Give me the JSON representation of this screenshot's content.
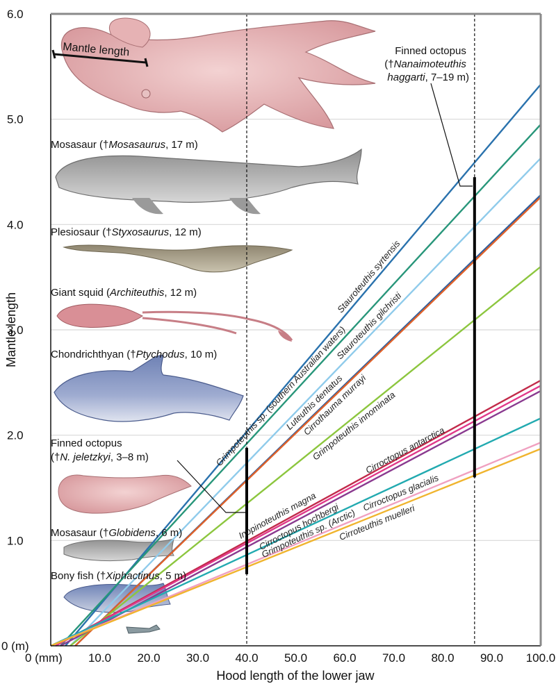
{
  "chart_data": {
    "type": "line",
    "xlabel": "Hood length of the lower jaw",
    "ylabel": "Mantle length",
    "xlim": [
      0,
      100
    ],
    "ylim": [
      0,
      6
    ],
    "x_ticks": [
      "0 (mm)",
      "10.0",
      "20.0",
      "30.0",
      "40.0",
      "50.0",
      "60.0",
      "70.0",
      "80.0",
      "90.0",
      "100.0"
    ],
    "y_ticks": [
      "0 (m)",
      "1.0",
      "2.0",
      "3.0",
      "4.0",
      "5.0",
      "6.0"
    ],
    "grid": "horizontal",
    "reference_lines": [
      {
        "x": 40,
        "style": "dashed"
      },
      {
        "x": 86.5,
        "style": "dashed"
      }
    ],
    "ranges": [
      {
        "x": 40,
        "y_min": 0.68,
        "y_max": 1.88,
        "label": "Finned octopus (†N. jeletzkyi, 3–8 m)"
      },
      {
        "x": 86.5,
        "y_min": 1.6,
        "y_max": 4.45,
        "label": "Finned octopus (†Nanaimoteuthis haggarti, 7–19 m)"
      }
    ],
    "series": [
      {
        "name": "Stauroteuthis syrtensis",
        "color": "#2a72ad",
        "x": [
          3,
          100
        ],
        "y": [
          0,
          5.33
        ]
      },
      {
        "name": "Grimpoteuthis sp. (southern Australian waters)",
        "color": "#28967a",
        "x": [
          2,
          100
        ],
        "y": [
          0,
          4.95
        ]
      },
      {
        "name": "Stauroteuthis gilchristi",
        "color": "#8fcbeb",
        "x": [
          4,
          100
        ],
        "y": [
          0,
          4.63
        ]
      },
      {
        "name": "Luteuthis dentatus",
        "color": "#2c5fa0",
        "x": [
          5,
          100
        ],
        "y": [
          0,
          4.28
        ]
      },
      {
        "name": "Cirrothauma murrayi",
        "color": "#e0622a",
        "x": [
          5,
          100
        ],
        "y": [
          0,
          4.26
        ]
      },
      {
        "name": "Grimpoteuthis innominata",
        "color": "#8cc63e",
        "x": [
          4,
          100
        ],
        "y": [
          0,
          3.6
        ]
      },
      {
        "name": "Inopinoteuthis magna",
        "color": "#c22a4a",
        "x": [
          1,
          100
        ],
        "y": [
          0,
          2.52
        ]
      },
      {
        "name": "Cirroctopus antarctica",
        "color": "#e0388a",
        "x": [
          1,
          100
        ],
        "y": [
          0,
          2.47
        ]
      },
      {
        "name": "Cirroctopus hochbergi",
        "color": "#8a3a8f",
        "x": [
          2,
          100
        ],
        "y": [
          0,
          2.42
        ]
      },
      {
        "name": "Grimpoteuthis sp. (Arctic)",
        "color": "#22aab0",
        "x": [
          0,
          100
        ],
        "y": [
          0,
          2.16
        ]
      },
      {
        "name": "Cirroctopus glacialis",
        "color": "#f0a0c0",
        "x": [
          0,
          100
        ],
        "y": [
          0,
          1.93
        ]
      },
      {
        "name": "Cirroteuthis muelleri",
        "color": "#f0b42e",
        "x": [
          0,
          100
        ],
        "y": [
          0,
          1.87
        ]
      }
    ],
    "annotations": [
      {
        "text": "Mantle length"
      },
      {
        "line1": "Finned octopus",
        "line2_pre": "(†",
        "line2_it": "Nanaimoteuthis",
        "line3_it": "haggarti",
        "line3_post": ", 7–19 m)"
      },
      {
        "pre": "Mosasaur (†",
        "it": "Mosasaurus",
        "post": ", 17 m)"
      },
      {
        "pre": "Plesiosaur (†",
        "it": "Styxosaurus",
        "post": ", 12 m)"
      },
      {
        "pre": "Giant squid (",
        "it": "Architeuthis",
        "post": ", 12 m)"
      },
      {
        "pre": "Chondrichthyan (†",
        "it": "Ptychodus",
        "post": ", 10 m)"
      },
      {
        "line1": "Finned octopus",
        "line2_pre": "(†",
        "line2_it": "N. jeletzkyi",
        "line2_post": ", 3–8 m)"
      },
      {
        "pre": "Mosasaur (†",
        "it": "Globidens",
        "post": ", 6 m)"
      },
      {
        "pre": "Bony fish (†",
        "it": "Xiphactinus",
        "post": ", 5 m)"
      }
    ]
  }
}
